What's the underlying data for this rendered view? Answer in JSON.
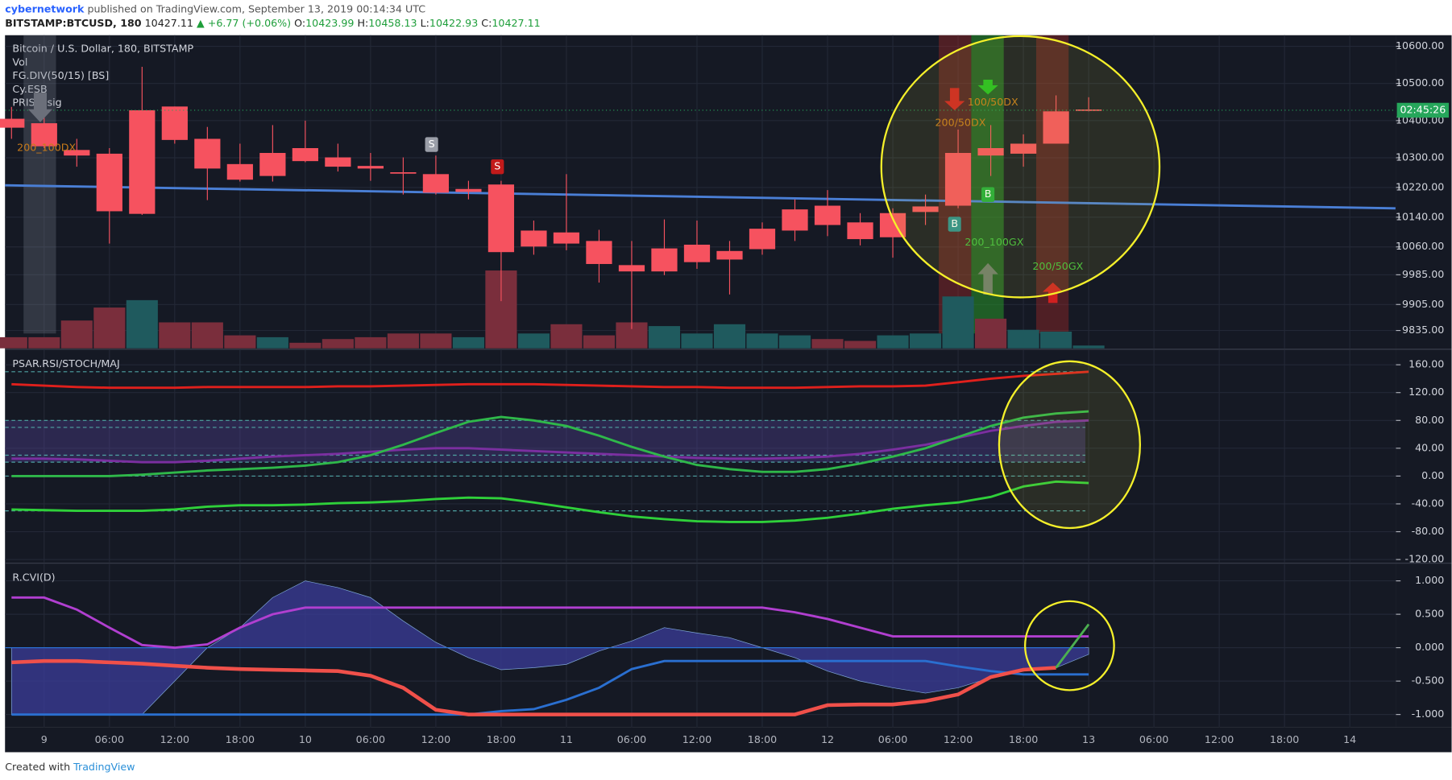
{
  "header": {
    "author": "cybernetwork",
    "published": "published on TradingView.com, September 13, 2019 00:14:34 UTC",
    "symbol": "BITSTAMP:BTCUSD, 180",
    "last": "10427.11",
    "change": "▲ +6.77 (+0.06%)",
    "ohlc": [
      {
        "key": "O:",
        "val": "10423.99"
      },
      {
        "key": "H:",
        "val": "10458.13"
      },
      {
        "key": "L:",
        "val": "10422.93"
      },
      {
        "key": "C:",
        "val": "10427.11"
      }
    ]
  },
  "xticks": [
    {
      "value": 1,
      "label": "9"
    },
    {
      "value": 3,
      "label": "06:00"
    },
    {
      "value": 5,
      "label": "12:00"
    },
    {
      "value": 7,
      "label": "18:00"
    },
    {
      "value": 9,
      "label": "10"
    },
    {
      "value": 11,
      "label": "06:00"
    },
    {
      "value": 13,
      "label": "12:00"
    },
    {
      "value": 15,
      "label": "18:00"
    },
    {
      "value": 17,
      "label": "11"
    },
    {
      "value": 19,
      "label": "06:00"
    },
    {
      "value": 21,
      "label": "12:00"
    },
    {
      "value": 23,
      "label": "18:00"
    },
    {
      "value": 25,
      "label": "12"
    },
    {
      "value": 27,
      "label": "06:00"
    },
    {
      "value": 29,
      "label": "12:00"
    },
    {
      "value": 31,
      "label": "18:00"
    },
    {
      "value": 33,
      "label": "13"
    },
    {
      "value": 35,
      "label": "06:00"
    },
    {
      "value": 37,
      "label": "12:00"
    },
    {
      "value": 39,
      "label": "18:00"
    },
    {
      "value": 41,
      "label": "14"
    }
  ],
  "chart_data": [
    {
      "type": "candlestick",
      "legend": [
        "Bitcoin / U.S. Dollar, 180, BITSTAMP",
        "Vol",
        "FG.DIV(50/15) [BS]",
        "Cy.ESB",
        "PRISM.sig"
      ],
      "color": "#f6525f",
      "open": [
        10405,
        10393,
        10321,
        10311,
        10428,
        10438,
        10351,
        10283,
        10313,
        10326,
        10301,
        10278,
        10261,
        10256,
        10216,
        10228,
        10104,
        10099,
        10076,
        10011,
        10056,
        10066,
        10049,
        10109,
        10161,
        10171,
        10126,
        10151,
        10169,
        10313,
        10326,
        10338,
        10425,
        10430
      ],
      "high": [
        10437,
        10430,
        10351,
        10326,
        10545,
        10438,
        10383,
        10338,
        10388,
        10400,
        10338,
        10313,
        10301,
        10306,
        10238,
        10238,
        10131,
        10256,
        10106,
        10076,
        10134,
        10131,
        10076,
        10126,
        10188,
        10213,
        10151,
        10164,
        10201,
        10376,
        10388,
        10363,
        10468,
        10463
      ],
      "low": [
        10351,
        10326,
        10276,
        10069,
        10146,
        10338,
        10186,
        10236,
        10236,
        10288,
        10263,
        10238,
        10201,
        10201,
        10188,
        9914,
        10039,
        10051,
        9964,
        9839,
        9984,
        10001,
        9932,
        10039,
        10076,
        10089,
        10064,
        10031,
        10119,
        10164,
        10251,
        10276,
        10338,
        10425
      ],
      "close": [
        10381,
        10331,
        10306,
        10156,
        10149,
        10348,
        10271,
        10241,
        10251,
        10291,
        10276,
        10271,
        10258,
        10206,
        10208,
        10046,
        10061,
        10069,
        10014,
        9994,
        9994,
        10019,
        10026,
        10054,
        10104,
        10119,
        10081,
        10086,
        10154,
        10171,
        10306,
        10311,
        10338,
        10428
      ],
      "volume": [
        12,
        12,
        30,
        44,
        52,
        28,
        28,
        14,
        12,
        6,
        10,
        12,
        16,
        16,
        12,
        84,
        16,
        26,
        14,
        28,
        24,
        16,
        26,
        16,
        14,
        10,
        8,
        14,
        16,
        56,
        32,
        20,
        18,
        3
      ],
      "volume_colors": [
        "#7a2e3c",
        "#7a2e3c",
        "#7a2e3c",
        "#7a2e3c",
        "#1f5a5e",
        "#7a2e3c",
        "#7a2e3c",
        "#7a2e3c",
        "#1f5a5e",
        "#7a2e3c",
        "#7a2e3c",
        "#7a2e3c",
        "#7a2e3c",
        "#7a2e3c",
        "#1f5a5e",
        "#7a2e3c",
        "#1f5a5e",
        "#7a2e3c",
        "#7a2e3c",
        "#7a2e3c",
        "#1f5a5e",
        "#1f5a5e",
        "#1f5a5e",
        "#1f5a5e",
        "#1f5a5e",
        "#7a2e3c",
        "#7a2e3c",
        "#1f5a5e",
        "#1f5a5e",
        "#1f5a5e",
        "#7a2e3c",
        "#1f5a5e",
        "#1f5a5e",
        "#1f5a5e"
      ],
      "trendline": {
        "color": "#4a7fd6",
        "values": [
          10226,
          10164
        ],
        "x": [
          -0.2,
          42.4
        ]
      },
      "last_tag": "02:45:26",
      "annotations": [
        {
          "text": "200_100DX",
          "color": "#c77a1a"
        },
        {
          "text": "200/50DX",
          "color": "#c77a1a"
        },
        {
          "text": "100/50DX",
          "color": "#c77a1a"
        },
        {
          "text": "200_100GX",
          "color": "#3fbf3f"
        },
        {
          "text": "200/50GX",
          "color": "#3fbf3f"
        },
        {
          "text": "S",
          "color": "#9a9ea8"
        },
        {
          "text": "S",
          "color": "#c21a1a"
        },
        {
          "text": "B",
          "color": "#2a8f8f"
        },
        {
          "text": "B",
          "color": "#1fae3a"
        }
      ],
      "ylim": [
        9787,
        10630
      ],
      "yticks": [
        {
          "value": 10600,
          "label": "10600.00"
        },
        {
          "value": 10500,
          "label": "10500.00"
        },
        {
          "value": 10400,
          "label": "10400.00"
        },
        {
          "value": 10300,
          "label": "10300.00"
        },
        {
          "value": 10220,
          "label": "10220.00"
        },
        {
          "value": 10140,
          "label": "10140.00"
        },
        {
          "value": 10060,
          "label": "10060.00"
        },
        {
          "value": 9985,
          "label": "9985.00"
        },
        {
          "value": 9905,
          "label": "9905.00"
        },
        {
          "value": 9835,
          "label": "9835.00"
        }
      ]
    },
    {
      "type": "line",
      "legend": [
        "PSAR.RSI/STOCH/MAJ"
      ],
      "levels": [
        150,
        80,
        70,
        30,
        20,
        0,
        -50
      ],
      "series": [
        {
          "color": "#e0201c",
          "values": [
            132,
            130,
            128,
            127,
            127,
            127,
            128,
            128,
            128,
            128,
            129,
            129,
            130,
            131,
            132,
            132,
            132,
            131,
            130,
            129,
            128,
            128,
            127,
            127,
            127,
            128,
            129,
            129,
            130,
            135,
            140,
            144,
            147,
            150
          ]
        },
        {
          "color": "#7b2fa0",
          "values": [
            25,
            25,
            24,
            22,
            20,
            20,
            22,
            25,
            28,
            30,
            32,
            35,
            38,
            40,
            40,
            38,
            36,
            34,
            32,
            30,
            28,
            26,
            25,
            25,
            26,
            28,
            32,
            38,
            45,
            55,
            65,
            72,
            78,
            80
          ]
        },
        {
          "color": "#2fb84a",
          "values": [
            0,
            0,
            0,
            0,
            2,
            5,
            8,
            10,
            12,
            15,
            20,
            30,
            45,
            62,
            78,
            85,
            80,
            72,
            58,
            42,
            28,
            16,
            10,
            6,
            6,
            10,
            18,
            28,
            40,
            56,
            72,
            84,
            90,
            93
          ]
        },
        {
          "color": "#2fd03a",
          "values": [
            -48,
            -49,
            -50,
            -50,
            -50,
            -48,
            -44,
            -42,
            -42,
            -41,
            -39,
            -38,
            -36,
            -33,
            -31,
            -32,
            -38,
            -45,
            -52,
            -58,
            -62,
            -65,
            -66,
            -66,
            -64,
            -60,
            -54,
            -47,
            -42,
            -38,
            -30,
            -15,
            -8,
            -10
          ]
        }
      ],
      "ylim": [
        -124,
        181
      ],
      "yticks": [
        {
          "value": 160,
          "label": "160.00"
        },
        {
          "value": 120,
          "label": "120.00"
        },
        {
          "value": 80,
          "label": "80.00"
        },
        {
          "value": 40,
          "label": "40.00"
        },
        {
          "value": 0,
          "label": "0.00"
        },
        {
          "value": -40,
          "label": "-40.00"
        },
        {
          "value": -80,
          "label": "-80.00"
        },
        {
          "value": -120,
          "label": "-120.00"
        }
      ]
    },
    {
      "type": "line",
      "legend": [
        "R.CVI(D)"
      ],
      "area": {
        "color": "#3b3c9a",
        "values": [
          -1,
          -1,
          -1,
          -1,
          -1,
          -0.5,
          0,
          0.3,
          0.75,
          1,
          0.9,
          0.75,
          0.4,
          0.08,
          -0.15,
          -0.33,
          -0.3,
          -0.25,
          -0.05,
          0.1,
          0.3,
          0.22,
          0.15,
          0,
          -0.15,
          -0.35,
          -0.5,
          -0.6,
          -0.68,
          -0.6,
          -0.45,
          -0.35,
          -0.3,
          -0.1
        ]
      },
      "series": [
        {
          "color": "#b13fd0",
          "values": [
            0.75,
            0.75,
            0.57,
            0.3,
            0.04,
            0,
            0.05,
            0.3,
            0.5,
            0.6,
            0.6,
            0.6,
            0.6,
            0.6,
            0.6,
            0.6,
            0.6,
            0.6,
            0.6,
            0.6,
            0.6,
            0.6,
            0.6,
            0.6,
            0.53,
            0.43,
            0.3,
            0.17,
            0.17,
            0.17,
            0.17,
            0.17,
            0.17,
            0.17
          ]
        },
        {
          "color": "#2a6fd0",
          "values": [
            -1,
            -1,
            -1,
            -1,
            -1,
            -1,
            -1,
            -1,
            -1,
            -1,
            -1,
            -1,
            -1,
            -1,
            -1,
            -0.95,
            -0.92,
            -0.78,
            -0.6,
            -0.32,
            -0.2,
            -0.2,
            -0.2,
            -0.2,
            -0.2,
            -0.2,
            -0.2,
            -0.2,
            -0.2,
            -0.28,
            -0.35,
            -0.4,
            -0.4,
            -0.4
          ]
        },
        {
          "color": "#f0504a",
          "values": [
            -0.22,
            -0.2,
            -0.2,
            -0.22,
            -0.24,
            -0.27,
            -0.3,
            -0.32,
            -0.33,
            -0.34,
            -0.35,
            -0.42,
            -0.6,
            -0.93,
            -1,
            -1,
            -1,
            -1,
            -1,
            -1,
            -1,
            -1,
            -1,
            -1,
            -1,
            -0.86,
            -0.85,
            -0.85,
            -0.8,
            -0.7,
            -0.44,
            -0.33,
            -0.3,
            null
          ]
        },
        {
          "color": "#4caf50",
          "values": [
            null,
            null,
            null,
            null,
            null,
            null,
            null,
            null,
            null,
            null,
            null,
            null,
            null,
            null,
            null,
            null,
            null,
            null,
            null,
            null,
            null,
            null,
            null,
            null,
            null,
            null,
            null,
            null,
            null,
            null,
            null,
            null,
            -0.3,
            0.35
          ]
        }
      ],
      "ylim": [
        -1.19,
        1.25
      ],
      "yticks": [
        {
          "value": 1,
          "label": "1.000"
        },
        {
          "value": 0.5,
          "label": "0.500"
        },
        {
          "value": 0,
          "label": "0.000"
        },
        {
          "value": -0.5,
          "label": "-0.500"
        },
        {
          "value": -1,
          "label": "-1.000"
        }
      ]
    }
  ],
  "footer": {
    "text": "Created with",
    "brand": "TradingView"
  }
}
